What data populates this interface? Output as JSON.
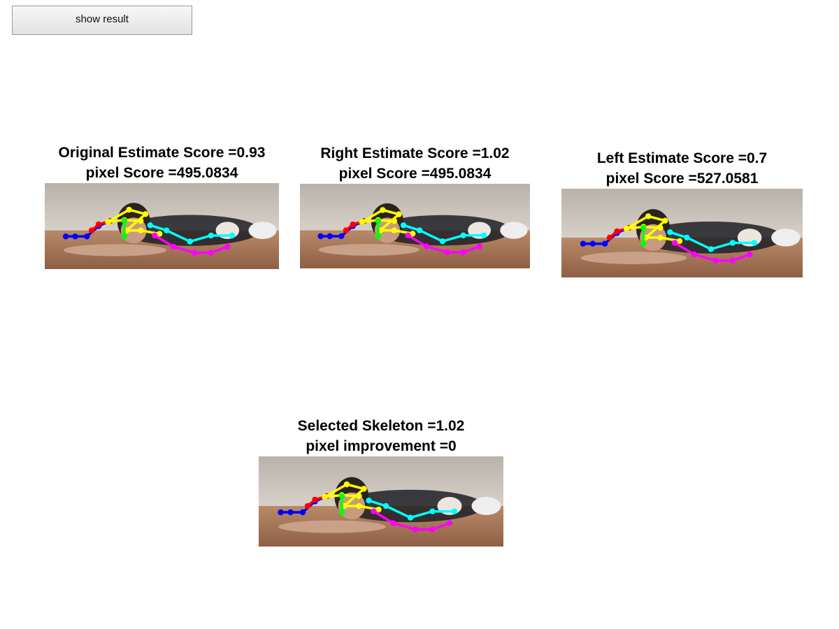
{
  "toolbar": {
    "show_result_label": "show result"
  },
  "panels": {
    "original": {
      "line1": "Original Estimate Score =0.93",
      "line2": "pixel Score =495.0834"
    },
    "right": {
      "line1": "Right Estimate Score =1.02",
      "line2": "pixel Score =495.0834"
    },
    "left": {
      "line1": "Left Estimate Score =0.7",
      "line2": "pixel Score =527.0581"
    },
    "selected": {
      "line1": "Selected Skeleton =1.02",
      "line2": "pixel improvement =0"
    }
  },
  "colors": {
    "limb_blue": "#0000ff",
    "limb_red": "#ff0000",
    "limb_yellow": "#ffff00",
    "limb_green": "#00ff00",
    "limb_cyan": "#00ffff",
    "limb_magenta": "#ff00ff"
  }
}
